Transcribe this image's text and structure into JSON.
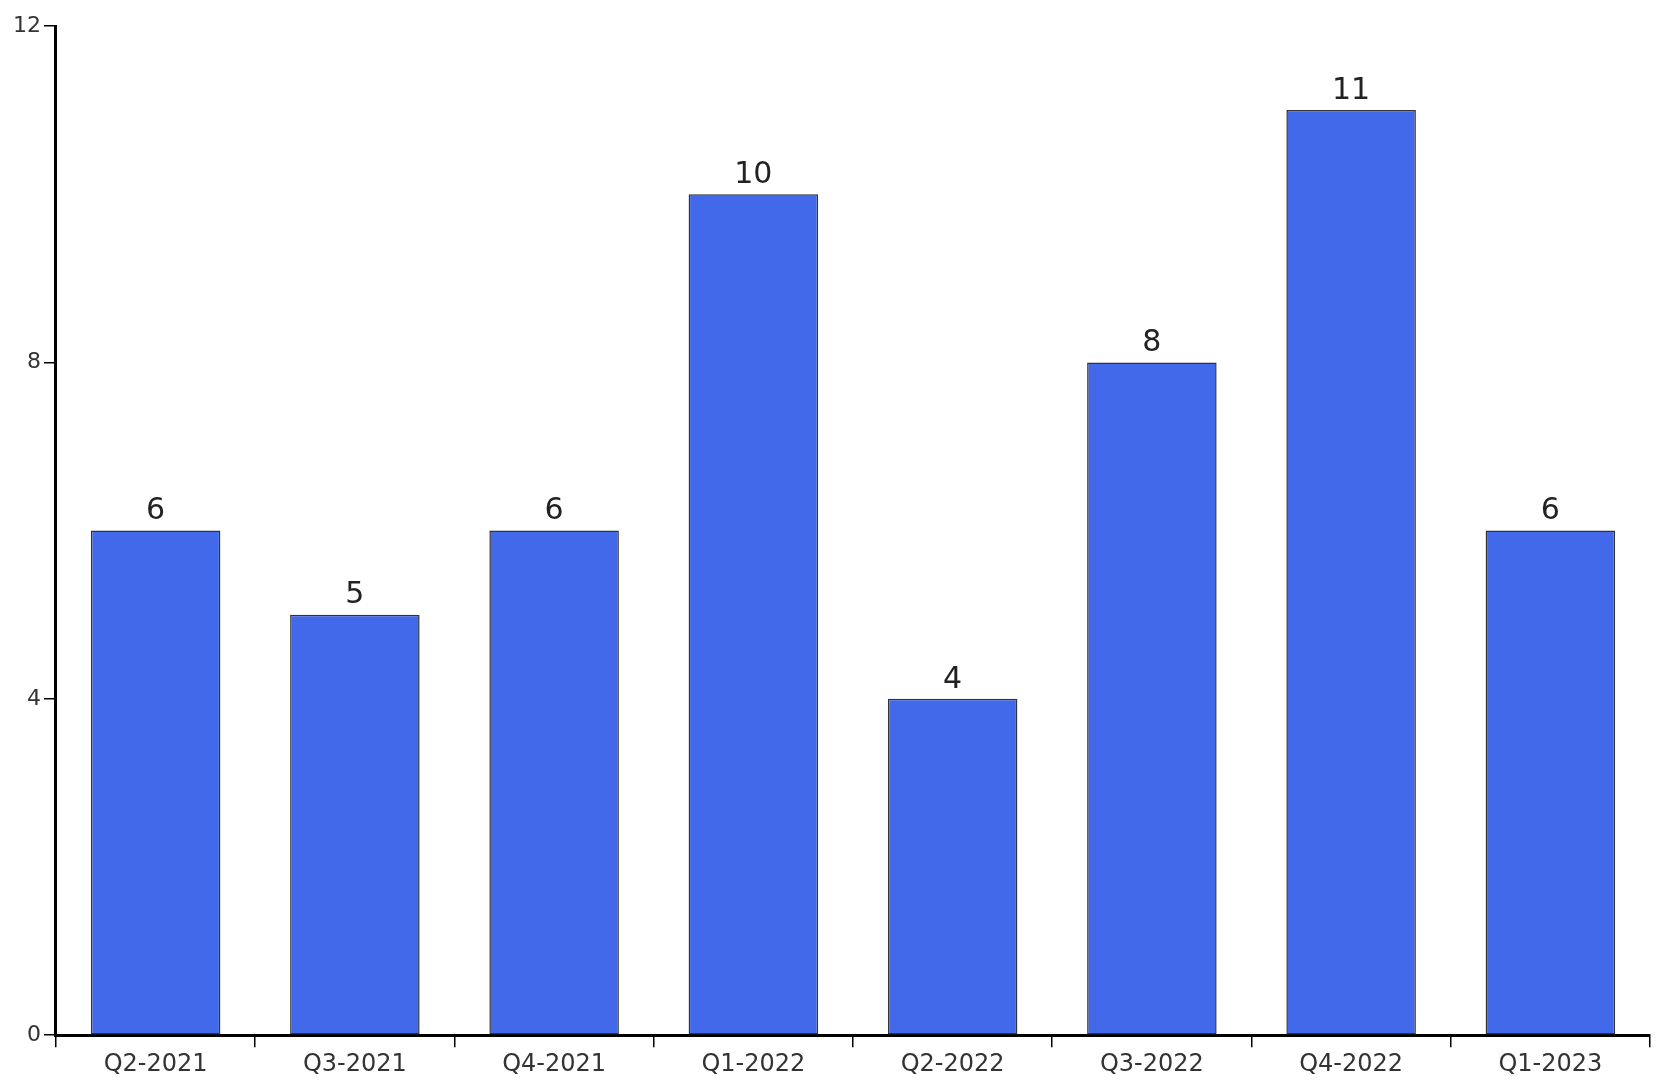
{
  "chart_data": {
    "type": "bar",
    "categories": [
      "Q2-2021",
      "Q3-2021",
      "Q4-2021",
      "Q1-2022",
      "Q2-2022",
      "Q3-2022",
      "Q4-2022",
      "Q1-2023"
    ],
    "values": [
      6,
      5,
      6,
      10,
      4,
      8,
      11,
      6
    ],
    "color": "#4169e9",
    "ylim": [
      0,
      12
    ],
    "yticks": [
      0,
      4,
      8,
      12
    ],
    "data_labels": true,
    "grid": false,
    "legend": false
  }
}
